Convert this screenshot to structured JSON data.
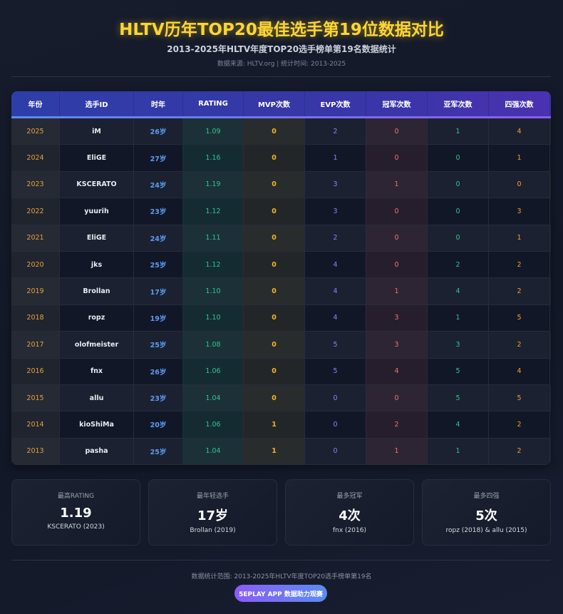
{
  "header": {
    "title": "HLTV历年TOP20最佳选手第19位数据对比",
    "subtitle": "2013-2025年HLTV年度TOP20选手榜单第19名数据统计",
    "source": "数据来源: HLTV.org | 统计时间: 2013-2025"
  },
  "table": {
    "columns": [
      "年份",
      "选手ID",
      "时年",
      "RATING",
      "MVP次数",
      "EVP次数",
      "冠军次数",
      "亚军次数",
      "四强次数"
    ],
    "rows": [
      [
        "2025",
        "iM",
        "26岁",
        "1.09",
        "0",
        "2",
        "0",
        "1",
        "4"
      ],
      [
        "2024",
        "EliGE",
        "27岁",
        "1.16",
        "0",
        "1",
        "0",
        "0",
        "1"
      ],
      [
        "2023",
        "KSCERATO",
        "24岁",
        "1.19",
        "0",
        "3",
        "1",
        "0",
        "0"
      ],
      [
        "2022",
        "yuurih",
        "23岁",
        "1.12",
        "0",
        "3",
        "0",
        "0",
        "3"
      ],
      [
        "2021",
        "EliGE",
        "24岁",
        "1.11",
        "0",
        "2",
        "0",
        "0",
        "1"
      ],
      [
        "2020",
        "jks",
        "25岁",
        "1.12",
        "0",
        "4",
        "0",
        "2",
        "2"
      ],
      [
        "2019",
        "Brollan",
        "17岁",
        "1.10",
        "0",
        "4",
        "1",
        "4",
        "2"
      ],
      [
        "2018",
        "ropz",
        "19岁",
        "1.10",
        "0",
        "4",
        "3",
        "1",
        "5"
      ],
      [
        "2017",
        "olofmeister",
        "25岁",
        "1.08",
        "0",
        "5",
        "3",
        "3",
        "2"
      ],
      [
        "2016",
        "fnx",
        "26岁",
        "1.06",
        "0",
        "5",
        "4",
        "5",
        "4"
      ],
      [
        "2015",
        "allu",
        "23岁",
        "1.04",
        "0",
        "0",
        "0",
        "5",
        "5"
      ],
      [
        "2014",
        "kioShiMa",
        "20岁",
        "1.06",
        "1",
        "0",
        "2",
        "4",
        "2"
      ],
      [
        "2013",
        "pasha",
        "25岁",
        "1.04",
        "1",
        "0",
        "1",
        "1",
        "2"
      ]
    ]
  },
  "cards": [
    {
      "label": "最高RATING",
      "value": "1.19",
      "detail": "KSCERATO (2023)"
    },
    {
      "label": "最年轻选手",
      "value": "17岁",
      "detail": "Brollan (2019)"
    },
    {
      "label": "最多冠军",
      "value": "4次",
      "detail": "fnx (2016)"
    },
    {
      "label": "最多四强",
      "value": "5次",
      "detail": "ropz (2018) & allu (2015)"
    }
  ],
  "footer": {
    "note": "数据统计范围: 2013-2025年HLTV年度TOP20选手榜单第19名",
    "button": "5EPLAY APP 数据助力观赛"
  }
}
